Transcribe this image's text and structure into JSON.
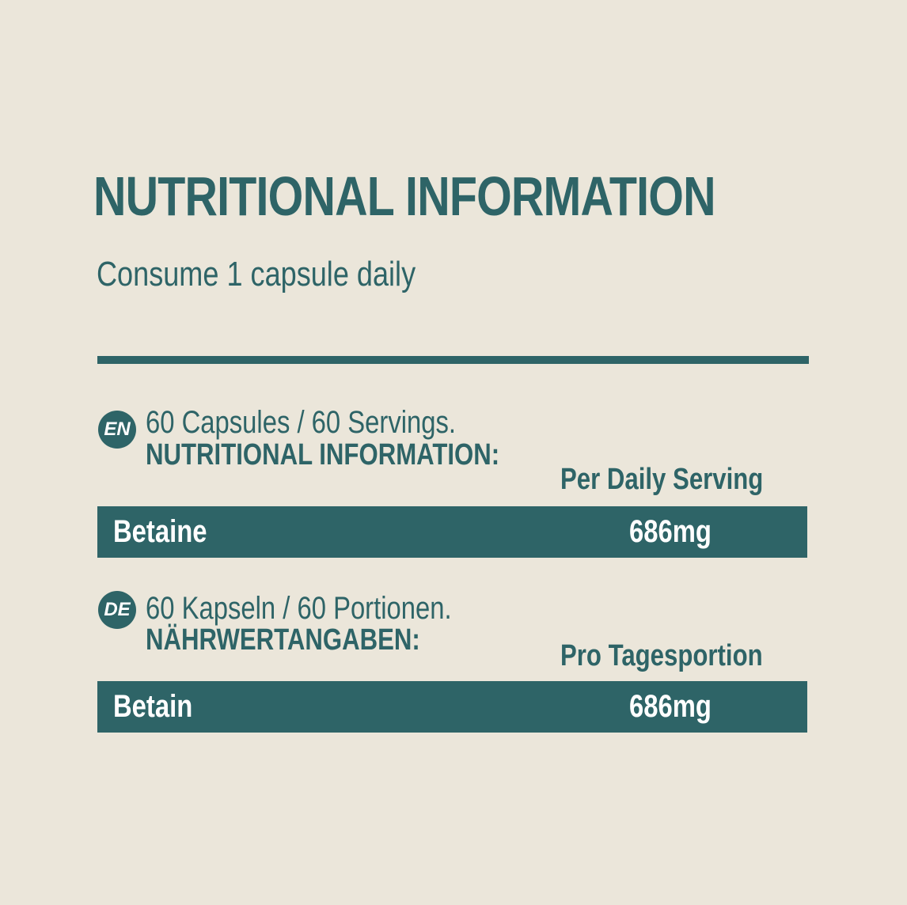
{
  "title": "NUTRITIONAL INFORMATION",
  "subtitle": "Consume 1 capsule daily",
  "colors": {
    "background": "#ebe6da",
    "accent": "#2e6467",
    "bar_text": "#ffffff"
  },
  "sections": [
    {
      "lang": "EN",
      "count_line": "60 Capsules / 60 Servings.",
      "heading": "NUTRITIONAL INFORMATION:",
      "column_header": "Per Daily Serving",
      "rows": [
        {
          "name": "Betaine",
          "value": "686mg"
        }
      ]
    },
    {
      "lang": "DE",
      "count_line": "60 Kapseln / 60 Portionen.",
      "heading": "NÄHRWERTANGABEN:",
      "column_header": "Pro Tagesportion",
      "rows": [
        {
          "name": "Betain",
          "value": "686mg"
        }
      ]
    }
  ]
}
